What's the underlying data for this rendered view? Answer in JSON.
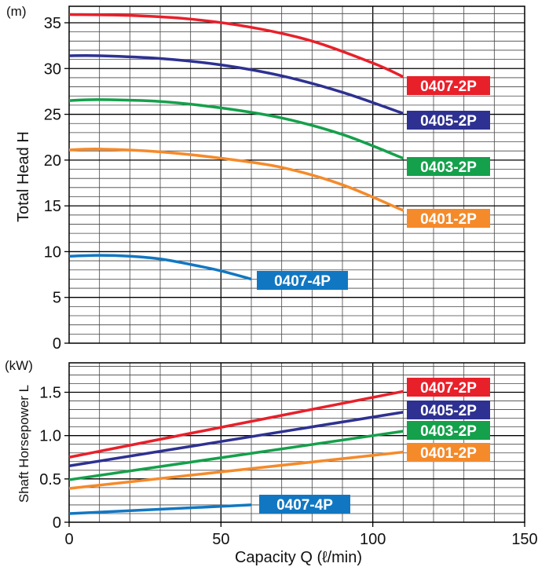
{
  "chart_data": [
    {
      "type": "line",
      "unit": "(m)",
      "ylabel": "Total Head H",
      "xlim": [
        0,
        150
      ],
      "ylim": [
        0,
        36.8
      ],
      "yticks": [
        "0",
        "5",
        "10",
        "15",
        "20",
        "25",
        "30",
        "35"
      ],
      "grid": true,
      "series": [
        {
          "name": "0407-2P",
          "color": "#e8202a",
          "x": [
            0,
            20,
            40,
            60,
            80,
            100,
            110
          ],
          "y": [
            35.9,
            35.8,
            35.4,
            34.5,
            33.0,
            30.6,
            29.1
          ]
        },
        {
          "name": "0405-2P",
          "color": "#2e3191",
          "x": [
            0,
            10,
            30,
            50,
            70,
            90,
            110
          ],
          "y": [
            31.4,
            31.4,
            31.1,
            30.4,
            29.2,
            27.4,
            25.1
          ]
        },
        {
          "name": "0403-2P",
          "color": "#15a04b",
          "x": [
            0,
            10,
            30,
            50,
            70,
            90,
            110
          ],
          "y": [
            26.5,
            26.6,
            26.4,
            25.7,
            24.6,
            22.8,
            20.2
          ]
        },
        {
          "name": "0401-2P",
          "color": "#f58a2a",
          "x": [
            0,
            10,
            30,
            50,
            70,
            90,
            110
          ],
          "y": [
            21.1,
            21.2,
            20.9,
            20.2,
            19.2,
            17.3,
            14.5
          ]
        },
        {
          "name": "0407-4P",
          "color": "#1177c2",
          "x": [
            0,
            10,
            20,
            30,
            40,
            50,
            60
          ],
          "y": [
            9.5,
            9.6,
            9.5,
            9.2,
            8.6,
            7.9,
            7.0
          ]
        }
      ]
    },
    {
      "type": "line",
      "unit": "(kW)",
      "xlabel": "Capacity Q  (ℓ/min)",
      "ylabel": "Shaft Horsepower L",
      "xlim": [
        0,
        150
      ],
      "ylim": [
        0,
        1.84
      ],
      "xticks": [
        "0",
        "50",
        "100",
        "150"
      ],
      "yticks": [
        "0",
        "0.5",
        "1.0",
        "1.5"
      ],
      "grid": true,
      "series": [
        {
          "name": "0407-2P",
          "color": "#e8202a",
          "x": [
            0,
            110
          ],
          "y": [
            0.75,
            1.51
          ]
        },
        {
          "name": "0405-2P",
          "color": "#2e3191",
          "x": [
            0,
            110
          ],
          "y": [
            0.65,
            1.27
          ]
        },
        {
          "name": "0403-2P",
          "color": "#15a04b",
          "x": [
            0,
            110
          ],
          "y": [
            0.49,
            1.05
          ]
        },
        {
          "name": "0401-2P",
          "color": "#f58a2a",
          "x": [
            0,
            110
          ],
          "y": [
            0.39,
            0.81
          ]
        },
        {
          "name": "0407-4P",
          "color": "#1177c2",
          "x": [
            0,
            60
          ],
          "y": [
            0.1,
            0.2
          ]
        }
      ]
    }
  ]
}
